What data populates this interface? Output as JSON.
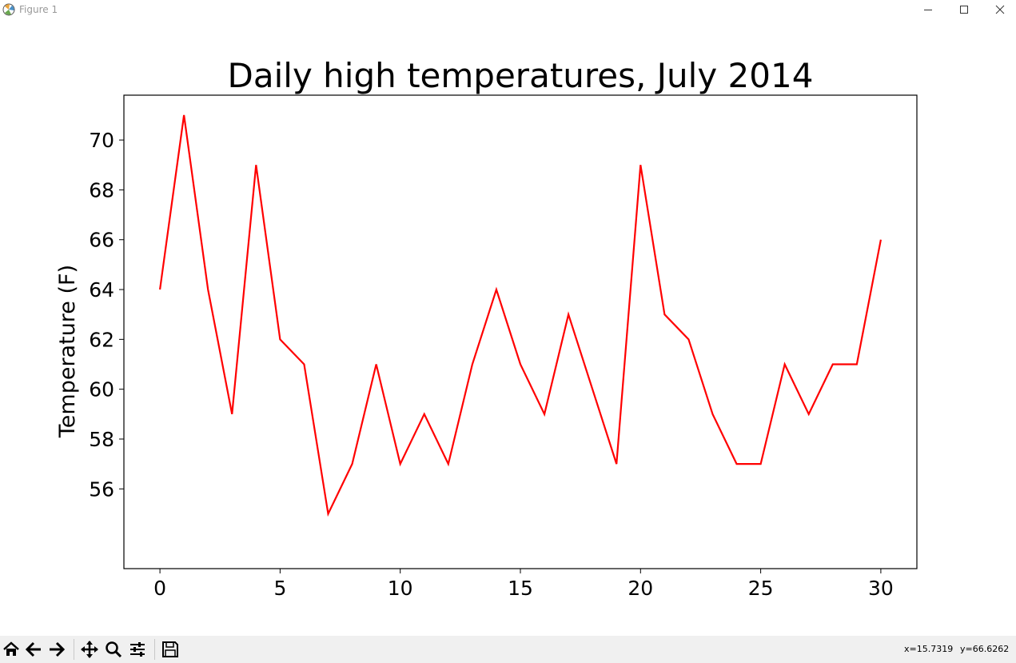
{
  "window": {
    "title": "Figure 1"
  },
  "toolbar": {
    "buttons": [
      "home-icon",
      "back-icon",
      "forward-icon",
      "pan-icon",
      "zoom-icon",
      "configure-subplots-icon",
      "save-icon"
    ],
    "coord_x": "x=15.7319",
    "coord_y": "y=66.6262"
  },
  "colors": {
    "line": "#ff0000",
    "axes": "#000000",
    "background": "#ffffff",
    "toolbar_bg": "#f0f0f0"
  },
  "chart_data": {
    "type": "line",
    "title": "Daily high temperatures, July 2014",
    "xlabel": "",
    "ylabel": "Temperature (F)",
    "x": [
      0,
      1,
      2,
      3,
      4,
      5,
      6,
      7,
      8,
      9,
      10,
      11,
      12,
      13,
      14,
      15,
      16,
      17,
      18,
      19,
      20,
      21,
      22,
      23,
      24,
      25,
      26,
      27,
      28,
      29,
      30
    ],
    "series": [
      {
        "values": [
          64,
          71,
          64,
          59,
          69,
          62,
          61,
          55,
          57,
          61,
          57,
          59,
          57,
          61,
          64,
          61,
          59,
          63,
          60,
          57,
          69,
          63,
          62,
          59,
          57,
          57,
          61,
          59,
          61,
          61,
          66
        ],
        "color": "#ff0000"
      }
    ],
    "xlim": [
      -1.5,
      31.5
    ],
    "ylim": [
      52.8,
      71.8
    ],
    "xticks": [
      0,
      5,
      10,
      15,
      20,
      25,
      30
    ],
    "xtick_labels": [
      "0",
      "5",
      "10",
      "15",
      "20",
      "25",
      "30"
    ],
    "yticks": [
      56,
      58,
      60,
      62,
      64,
      66,
      68,
      70
    ],
    "ytick_labels": [
      "56",
      "58",
      "60",
      "62",
      "64",
      "66",
      "68",
      "70"
    ],
    "grid": false
  }
}
